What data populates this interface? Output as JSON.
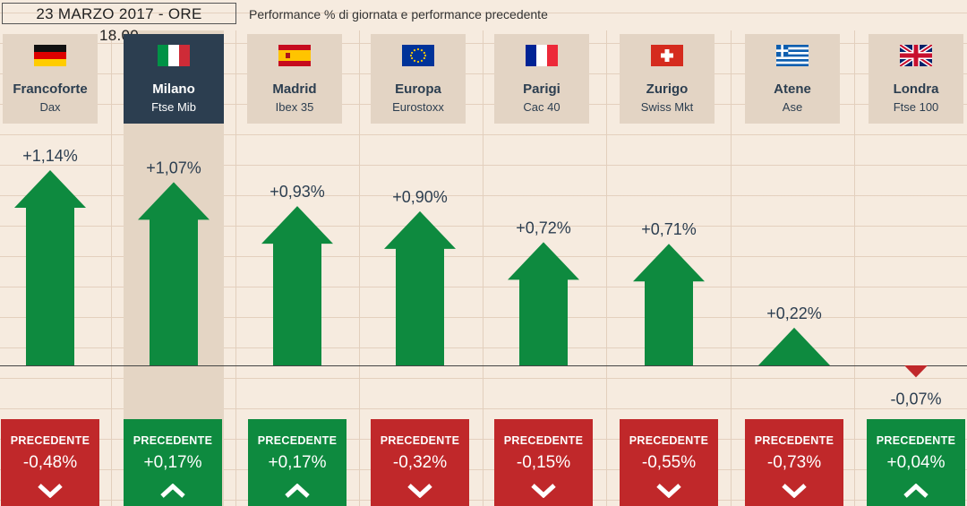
{
  "header": {
    "date": "23 MARZO 2017 - ORE 18.00",
    "subtitle": "Performance % di giornata e performance precedente"
  },
  "labels": {
    "precedente": "PRECEDENTE"
  },
  "colors": {
    "up": "#0e8a3f",
    "down": "#c0282a",
    "active_card": "#2c3e50"
  },
  "markets": [
    {
      "city": "Francoforte",
      "index": "Dax",
      "flag": "germany-flag-icon",
      "value_label": "+1,14%",
      "prev_label": "-0,48%",
      "prev_dir": "down"
    },
    {
      "city": "Milano",
      "index": "Ftse Mib",
      "flag": "italy-flag-icon",
      "value_label": "+1,07%",
      "prev_label": "+0,17%",
      "prev_dir": "up"
    },
    {
      "city": "Madrid",
      "index": "Ibex 35",
      "flag": "spain-flag-icon",
      "value_label": "+0,93%",
      "prev_label": "+0,17%",
      "prev_dir": "up"
    },
    {
      "city": "Europa",
      "index": "Eurostoxx",
      "flag": "eu-flag-icon",
      "value_label": "+0,90%",
      "prev_label": "-0,32%",
      "prev_dir": "down"
    },
    {
      "city": "Parigi",
      "index": "Cac 40",
      "flag": "france-flag-icon",
      "value_label": "+0,72%",
      "prev_label": "-0,15%",
      "prev_dir": "down"
    },
    {
      "city": "Zurigo",
      "index": "Swiss Mkt",
      "flag": "switzerland-flag-icon",
      "value_label": "+0,71%",
      "prev_label": "-0,55%",
      "prev_dir": "down"
    },
    {
      "city": "Atene",
      "index": "Ase",
      "flag": "greece-flag-icon",
      "value_label": "+0,22%",
      "prev_label": "-0,73%",
      "prev_dir": "down"
    },
    {
      "city": "Londra",
      "index": "Ftse 100",
      "flag": "uk-flag-icon",
      "value_label": "-0,07%",
      "prev_label": "+0,04%",
      "prev_dir": "up"
    }
  ],
  "chart_data": {
    "type": "bar",
    "categories": [
      "Francoforte",
      "Milano",
      "Madrid",
      "Europa",
      "Parigi",
      "Zurigo",
      "Atene",
      "Londra"
    ],
    "values": [
      1.14,
      1.07,
      0.93,
      0.9,
      0.72,
      0.71,
      0.22,
      -0.07
    ],
    "previous": [
      -0.48,
      0.17,
      0.17,
      -0.32,
      -0.15,
      -0.55,
      -0.73,
      0.04
    ],
    "title": "Performance % di giornata e performance precedente",
    "highlighted": "Milano"
  }
}
